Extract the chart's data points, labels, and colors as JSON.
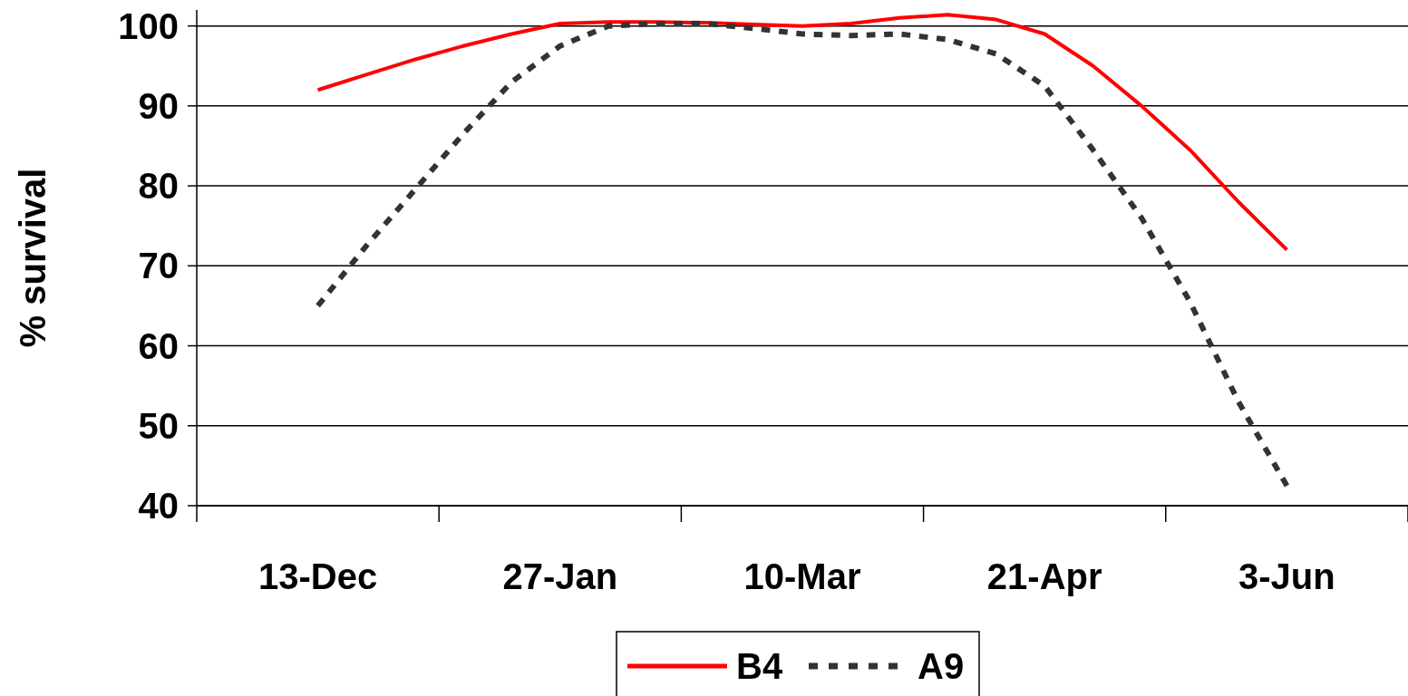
{
  "chart_data": {
    "type": "line",
    "ylabel": "% survival",
    "categories": [
      null,
      null,
      "13-Dec",
      null,
      null,
      null,
      null,
      "27-Jan",
      null,
      null,
      null,
      null,
      "10-Mar",
      null,
      null,
      null,
      null,
      "21-Apr",
      null,
      null,
      null,
      null,
      "3-Jun",
      null,
      null
    ],
    "series": [
      {
        "name": "B4",
        "color": "#ff0000",
        "line_style": "solid",
        "values": [
          null,
          null,
          92,
          93.9,
          95.8,
          97.5,
          99,
          100.3,
          100.5,
          100.5,
          100.4,
          100.2,
          100,
          100.3,
          101,
          101.4,
          100.8,
          99,
          95,
          90,
          84.5,
          78,
          72,
          null,
          null
        ]
      },
      {
        "name": "A9",
        "color": "#333333",
        "line_style": "dashed",
        "values": [
          null,
          null,
          65,
          72.5,
          79.5,
          86.5,
          93,
          97.5,
          100,
          100.3,
          100.3,
          99.7,
          99,
          98.8,
          99,
          98.3,
          96.5,
          92.5,
          84.5,
          76,
          65.5,
          53,
          42.5,
          null,
          null
        ]
      }
    ],
    "ylim": [
      40,
      102
    ],
    "yticks": [
      40,
      50,
      60,
      70,
      80,
      90,
      100
    ],
    "grid": "y",
    "legend": "bottom",
    "marker": "none"
  }
}
